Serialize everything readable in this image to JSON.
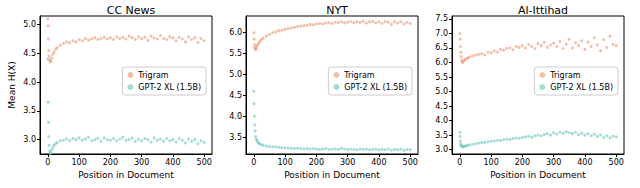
{
  "chart_data": [
    {
      "type": "scatter",
      "title": "CC News",
      "x_label": "Position in Document",
      "y_label": "Mean H(X)",
      "xlim": [
        -25,
        525
      ],
      "xticks": [
        0,
        100,
        200,
        300,
        400,
        500
      ],
      "ylim": [
        2.75,
        5.15
      ],
      "yticks": [
        {
          "value": 3,
          "label": "3.0"
        },
        {
          "value": 3.5,
          "label": "3.5"
        },
        {
          "value": 4,
          "label": "4.0"
        },
        {
          "value": 4.5,
          "label": "4.5"
        },
        {
          "value": 5,
          "label": "5.0"
        }
      ],
      "grid": false,
      "legend": "right",
      "x": [
        0,
        1,
        2,
        3,
        4,
        6,
        8,
        10,
        13,
        16,
        20,
        25,
        30,
        40,
        50,
        60,
        70,
        80,
        90,
        100,
        110,
        120,
        130,
        140,
        150,
        160,
        170,
        180,
        190,
        200,
        210,
        220,
        230,
        240,
        250,
        260,
        270,
        280,
        290,
        300,
        310,
        320,
        330,
        340,
        350,
        360,
        370,
        380,
        390,
        400,
        410,
        420,
        430,
        440,
        450,
        460,
        470,
        480,
        490,
        500
      ],
      "series": [
        {
          "name": "Trigram",
          "color": "#ef9a7a",
          "values": [
            5.1,
            4.98,
            4.75,
            4.55,
            4.45,
            4.38,
            4.35,
            4.37,
            4.42,
            4.48,
            4.52,
            4.57,
            4.6,
            4.64,
            4.67,
            4.7,
            4.68,
            4.72,
            4.7,
            4.74,
            4.72,
            4.76,
            4.73,
            4.75,
            4.77,
            4.74,
            4.76,
            4.78,
            4.75,
            4.77,
            4.74,
            4.79,
            4.76,
            4.78,
            4.75,
            4.8,
            4.77,
            4.74,
            4.79,
            4.76,
            4.78,
            4.73,
            4.8,
            4.77,
            4.75,
            4.81,
            4.76,
            4.74,
            4.79,
            4.77,
            4.72,
            4.78,
            4.75,
            4.7,
            4.79,
            4.74,
            4.77,
            4.69,
            4.76,
            4.72
          ]
        },
        {
          "name": "GPT-2 XL (1.5B)",
          "color": "#72c7c2",
          "values": [
            4.4,
            3.65,
            3.3,
            3.05,
            2.9,
            2.8,
            2.76,
            2.77,
            2.82,
            2.86,
            2.9,
            2.93,
            2.95,
            2.98,
            2.99,
            3.01,
            2.98,
            3.02,
            3.0,
            3.03,
            2.99,
            3.01,
            3.04,
            2.98,
            3.0,
            3.02,
            2.97,
            3.03,
            3.0,
            2.99,
            3.02,
            2.98,
            3.01,
            3.04,
            2.99,
            3.0,
            3.03,
            2.97,
            3.01,
            2.98,
            3.02,
            3.0,
            2.96,
            3.03,
            2.99,
            3.01,
            2.97,
            3.02,
            2.98,
            3.0,
            2.96,
            3.02,
            2.99,
            2.94,
            3.01,
            2.97,
            3.0,
            2.93,
            2.98,
            2.95
          ]
        }
      ]
    },
    {
      "type": "scatter",
      "title": "NYT",
      "x_label": "Position in Document",
      "xlim": [
        -25,
        525
      ],
      "xticks": [
        0,
        100,
        200,
        300,
        400,
        500
      ],
      "ylim": [
        3.1,
        6.4
      ],
      "yticks": [
        {
          "value": 3.5,
          "label": "3.5"
        },
        {
          "value": 4,
          "label": "4.0"
        },
        {
          "value": 4.5,
          "label": "4.5"
        },
        {
          "value": 5,
          "label": "5.0"
        },
        {
          "value": 5.5,
          "label": "5.5"
        },
        {
          "value": 6,
          "label": "6.0"
        }
      ],
      "grid": false,
      "legend": "right",
      "x": [
        0,
        1,
        2,
        3,
        4,
        6,
        8,
        10,
        13,
        16,
        20,
        25,
        30,
        40,
        50,
        60,
        70,
        80,
        90,
        100,
        110,
        120,
        130,
        140,
        150,
        160,
        170,
        180,
        190,
        200,
        210,
        220,
        230,
        240,
        250,
        260,
        270,
        280,
        290,
        300,
        310,
        320,
        330,
        340,
        350,
        360,
        370,
        380,
        390,
        400,
        410,
        420,
        430,
        440,
        450,
        460,
        470,
        480,
        490,
        500
      ],
      "series": [
        {
          "name": "Trigram",
          "color": "#ef9a7a",
          "values": [
            6.0,
            5.85,
            5.72,
            5.65,
            5.62,
            5.6,
            5.63,
            5.68,
            5.72,
            5.76,
            5.8,
            5.84,
            5.87,
            5.92,
            5.96,
            6.0,
            6.02,
            6.05,
            6.06,
            6.08,
            6.1,
            6.12,
            6.13,
            6.15,
            6.16,
            6.17,
            6.18,
            6.2,
            6.19,
            6.21,
            6.22,
            6.21,
            6.23,
            6.24,
            6.22,
            6.25,
            6.24,
            6.26,
            6.23,
            6.25,
            6.27,
            6.24,
            6.26,
            6.25,
            6.28,
            6.23,
            6.26,
            6.27,
            6.24,
            6.26,
            6.22,
            6.27,
            6.25,
            6.2,
            6.26,
            6.23,
            6.27,
            6.21,
            6.25,
            6.22
          ]
        },
        {
          "name": "GPT-2 XL (1.5B)",
          "color": "#72c7c2",
          "values": [
            4.6,
            4.3,
            4.0,
            3.8,
            3.65,
            3.52,
            3.45,
            3.42,
            3.38,
            3.36,
            3.34,
            3.32,
            3.31,
            3.29,
            3.28,
            3.27,
            3.27,
            3.26,
            3.25,
            3.25,
            3.24,
            3.24,
            3.23,
            3.24,
            3.23,
            3.22,
            3.23,
            3.22,
            3.23,
            3.22,
            3.21,
            3.22,
            3.23,
            3.21,
            3.22,
            3.22,
            3.21,
            3.23,
            3.22,
            3.21,
            3.22,
            3.21,
            3.2,
            3.22,
            3.21,
            3.22,
            3.2,
            3.21,
            3.22,
            3.2,
            3.21,
            3.2,
            3.22,
            3.19,
            3.21,
            3.2,
            3.22,
            3.19,
            3.21,
            3.2
          ]
        }
      ]
    },
    {
      "type": "scatter",
      "title": "Al-Ittihad",
      "x_label": "Position in Document",
      "xlim": [
        -25,
        525
      ],
      "xticks": [
        0,
        100,
        200,
        300,
        400,
        500
      ],
      "ylim": [
        2.85,
        7.6
      ],
      "yticks": [
        {
          "value": 3,
          "label": "3.0"
        },
        {
          "value": 3.5,
          "label": "3.5"
        },
        {
          "value": 4,
          "label": "4.0"
        },
        {
          "value": 4.5,
          "label": "4.5"
        },
        {
          "value": 5,
          "label": "5.0"
        },
        {
          "value": 5.5,
          "label": "5.5"
        },
        {
          "value": 6,
          "label": "6.0"
        },
        {
          "value": 6.5,
          "label": "6.5"
        },
        {
          "value": 7,
          "label": "7.0"
        },
        {
          "value": 7.5,
          "label": "7.5"
        }
      ],
      "grid": false,
      "legend": "right",
      "x": [
        0,
        1,
        2,
        3,
        4,
        6,
        8,
        10,
        13,
        16,
        20,
        25,
        30,
        40,
        50,
        60,
        70,
        80,
        90,
        100,
        110,
        120,
        130,
        140,
        150,
        160,
        170,
        180,
        190,
        200,
        210,
        220,
        230,
        240,
        250,
        260,
        270,
        280,
        290,
        300,
        310,
        320,
        330,
        340,
        350,
        360,
        370,
        380,
        390,
        400,
        410,
        420,
        430,
        440,
        450,
        460,
        470,
        480,
        490,
        500
      ],
      "series": [
        {
          "name": "Trigram",
          "color": "#ef9a7a",
          "values": [
            7.0,
            6.8,
            6.55,
            6.35,
            6.2,
            6.08,
            6.02,
            6.0,
            6.05,
            6.1,
            6.12,
            6.15,
            6.18,
            6.22,
            6.25,
            6.28,
            6.3,
            6.26,
            6.35,
            6.33,
            6.4,
            6.36,
            6.45,
            6.42,
            6.48,
            6.5,
            6.44,
            6.55,
            6.52,
            6.58,
            6.5,
            6.62,
            6.55,
            6.48,
            6.65,
            6.58,
            6.7,
            6.52,
            6.6,
            6.66,
            6.55,
            6.72,
            6.48,
            6.63,
            6.8,
            6.5,
            6.68,
            6.58,
            6.75,
            6.45,
            6.7,
            6.55,
            6.85,
            6.6,
            6.4,
            6.78,
            6.52,
            6.9,
            6.62,
            6.58
          ]
        },
        {
          "name": "GPT-2 XL (1.5B)",
          "color": "#72c7c2",
          "values": [
            3.6,
            3.45,
            3.3,
            3.2,
            3.15,
            3.12,
            3.1,
            3.1,
            3.11,
            3.12,
            3.13,
            3.15,
            3.16,
            3.18,
            3.2,
            3.22,
            3.24,
            3.25,
            3.27,
            3.29,
            3.3,
            3.32,
            3.31,
            3.34,
            3.36,
            3.35,
            3.38,
            3.4,
            3.39,
            3.42,
            3.44,
            3.46,
            3.43,
            3.48,
            3.5,
            3.47,
            3.52,
            3.55,
            3.5,
            3.58,
            3.54,
            3.6,
            3.56,
            3.62,
            3.58,
            3.55,
            3.6,
            3.52,
            3.57,
            3.5,
            3.55,
            3.48,
            3.53,
            3.45,
            3.5,
            3.42,
            3.48,
            3.4,
            3.46,
            3.44
          ]
        }
      ]
    }
  ]
}
